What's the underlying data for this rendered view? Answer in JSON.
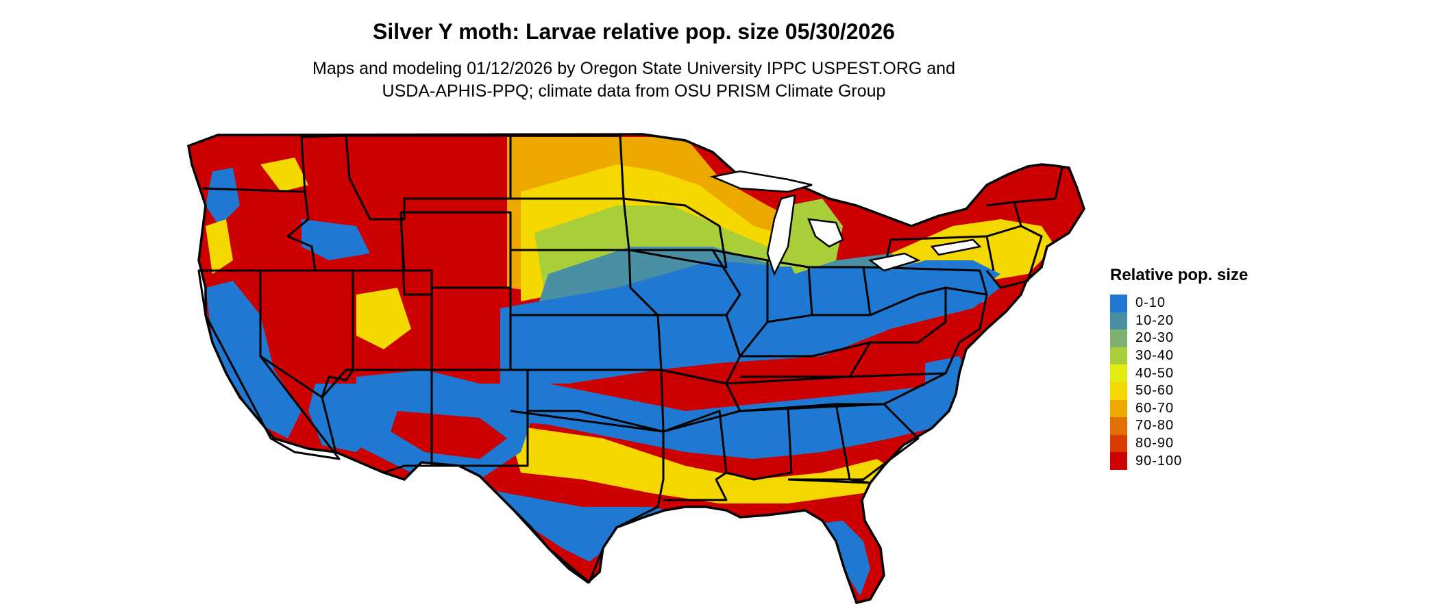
{
  "title": "Silver Y moth: Larvae relative pop. size 05/30/2026",
  "subtitle_line1": "Maps and modeling 01/12/2026 by Oregon State University IPPC USPEST.ORG and",
  "subtitle_line2": "USDA-APHIS-PPQ; climate data from OSU PRISM Climate Group",
  "legend": {
    "title": "Relative pop. size",
    "items": [
      {
        "label": "0-10",
        "color": "#1f78d1"
      },
      {
        "label": "10-20",
        "color": "#4a90a4"
      },
      {
        "label": "20-30",
        "color": "#7fb06e"
      },
      {
        "label": "30-40",
        "color": "#a8cf3a"
      },
      {
        "label": "40-50",
        "color": "#e3ec12"
      },
      {
        "label": "50-60",
        "color": "#f5d800"
      },
      {
        "label": "60-70",
        "color": "#eda800"
      },
      {
        "label": "70-80",
        "color": "#e27000"
      },
      {
        "label": "80-90",
        "color": "#d93d00"
      },
      {
        "label": "90-100",
        "color": "#cc0000"
      }
    ]
  }
}
